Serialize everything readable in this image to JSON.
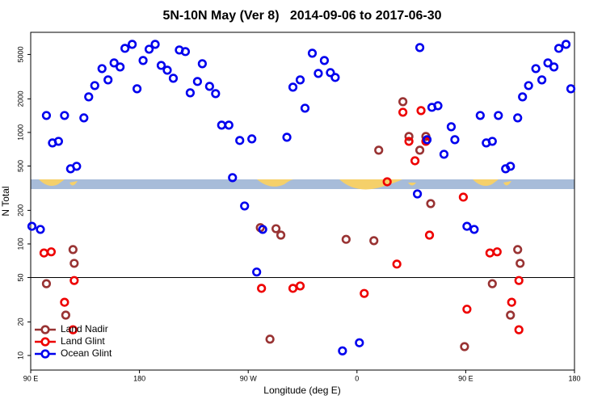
{
  "chart_data": {
    "type": "scatter",
    "title": "5N-10N May (Ver 8)   2014-09-06 to 2017-06-30",
    "x_label": "Longitude (deg E)",
    "y_label": "N Total",
    "log_y": true,
    "hline": 50,
    "legend": "lower left",
    "xlim": [
      90,
      540
    ],
    "xticks": [
      {
        "value": 90,
        "label": "90 E"
      },
      {
        "value": 180,
        "label": "180"
      },
      {
        "value": 270,
        "label": "90 W"
      },
      {
        "value": 360,
        "label": "0"
      },
      {
        "value": 450,
        "label": "90 E"
      },
      {
        "value": 540,
        "label": "180"
      }
    ],
    "ylim": [
      7.4,
      7900
    ],
    "yticks": [
      10,
      20,
      50,
      100,
      200,
      500,
      1000,
      2000,
      5000
    ],
    "series": [
      {
        "name": "Land Nadir",
        "color": "#993333",
        "x": [
          103,
          119,
          125,
          126,
          280,
          288,
          293,
          297,
          351,
          374,
          378,
          398,
          403,
          412,
          417,
          421,
          449,
          472,
          487,
          493,
          495
        ],
        "values": [
          44,
          23,
          89,
          67,
          140,
          14,
          137,
          120,
          110,
          107,
          693,
          1885,
          920,
          693,
          920,
          230,
          12,
          44,
          23,
          89,
          67
        ]
      },
      {
        "name": "Land Glint",
        "color": "#ee0000",
        "x": [
          101,
          107,
          118,
          125,
          126,
          281,
          307,
          313,
          366,
          385,
          393,
          398,
          403,
          408,
          413,
          417,
          420,
          448,
          451,
          470,
          476,
          488,
          494,
          494
        ],
        "values": [
          83,
          85,
          30,
          17,
          47,
          40,
          40,
          42,
          36,
          361,
          66,
          1517,
          832,
          557,
          1569,
          832,
          120,
          263,
          26,
          83,
          85,
          30,
          17,
          47
        ]
      },
      {
        "name": "Ocean Glint",
        "color": "#0000ee",
        "x": [
          91,
          98,
          103,
          108,
          113,
          118,
          123,
          128,
          134,
          138,
          143,
          149,
          154,
          159,
          164,
          168,
          174,
          178,
          183,
          188,
          193,
          198,
          203,
          208,
          213,
          218,
          222,
          228,
          232,
          238,
          243,
          248,
          254,
          257,
          263,
          267,
          273,
          277,
          282,
          302,
          307,
          313,
          317,
          323,
          328,
          333,
          338,
          342,
          348,
          362,
          410,
          412,
          418,
          422,
          427,
          432,
          438,
          441,
          451,
          457,
          462,
          467,
          472,
          477,
          483,
          487,
          493,
          497,
          502,
          508,
          513,
          518,
          523,
          527,
          533,
          537
        ],
        "values": [
          144,
          135,
          1419,
          805,
          832,
          1419,
          472,
          497,
          1350,
          2084,
          2630,
          3733,
          2958,
          4200,
          3864,
          5675,
          6166,
          2462,
          4416,
          5572,
          6166,
          3990,
          3614,
          3060,
          5483,
          5308,
          2265,
          2864,
          4130,
          2588,
          2228,
          1162,
          1162,
          393,
          847,
          219,
          875,
          56,
          135,
          905,
          2546,
          2958,
          1649,
          5129,
          3381,
          4416,
          3436,
          3112,
          11,
          13,
          281,
          5768,
          861,
          1679,
          1734,
          637,
          1124,
          861,
          144,
          135,
          1419,
          805,
          832,
          1419,
          472,
          497,
          1350,
          2084,
          2630,
          3733,
          2958,
          4200,
          3864,
          5675,
          6166,
          2462
        ]
      }
    ]
  }
}
